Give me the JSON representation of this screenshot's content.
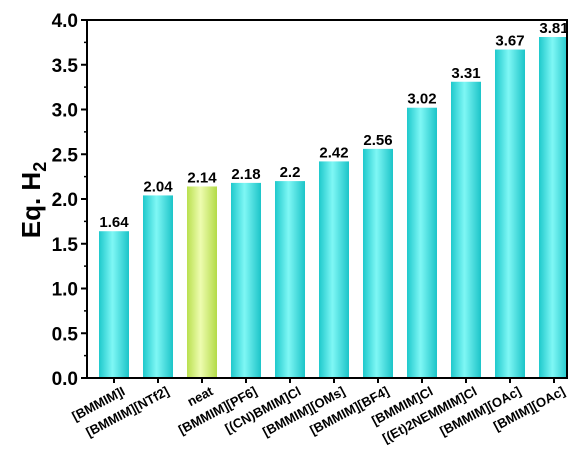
{
  "chart_data": {
    "type": "bar",
    "categories": [
      "[BMMIM]I",
      "[BMMIM][NTf2]",
      "neat",
      "[BMMIM][PF6]",
      "[(CN)BMIM]Cl",
      "[BMMIM][OMs]",
      "[BMMIM][BF4]",
      "[BMMIM]Cl",
      "[(Et)2NEMMIM]Cl",
      "[BMMIM][OAc]",
      "[BMIM][OAc]"
    ],
    "values": [
      1.64,
      2.04,
      2.14,
      2.18,
      2.2,
      2.42,
      2.56,
      3.02,
      3.31,
      3.67,
      3.81
    ],
    "value_labels": [
      "1.64",
      "2.04",
      "2.14",
      "2.18",
      "2.2",
      "2.42",
      "2.56",
      "3.02",
      "3.31",
      "3.67",
      "3.81"
    ],
    "ylabel_main": "Eq. H",
    "ylabel_sub": "2",
    "xlabel": "",
    "ylim": [
      0.0,
      4.0
    ],
    "yticks": [
      "0.0",
      "0.5",
      "1.0",
      "1.5",
      "2.0",
      "2.5",
      "3.0",
      "3.5",
      "4.0"
    ],
    "grid": false,
    "legend": "none",
    "colors": {
      "bar_default": "#33e0e0",
      "bar_highlight": "#d7f07a",
      "highlight_category": "neat"
    }
  }
}
